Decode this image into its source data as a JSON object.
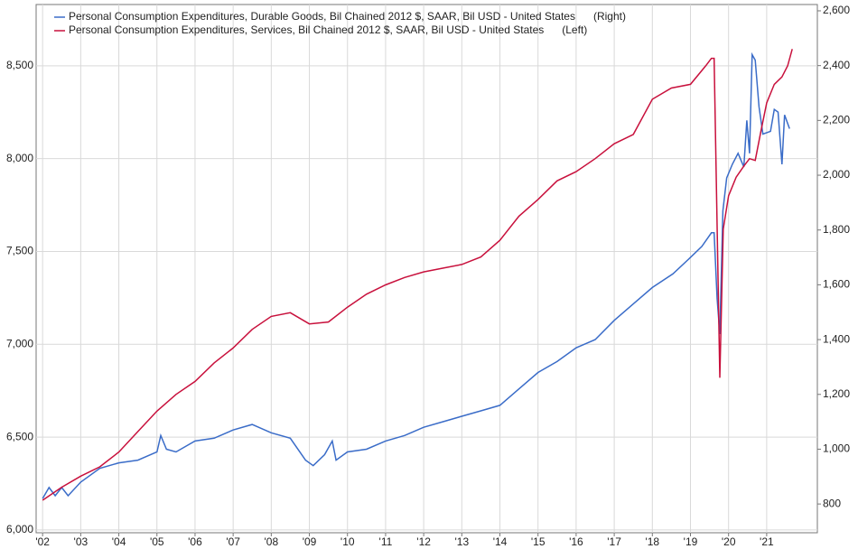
{
  "chart_data": {
    "type": "line",
    "series": [
      {
        "name": "Personal Consumption Expenditures, Durable Goods, Bil Chained 2012 $, SAAR, Bil USD - United States",
        "side": "(Right)",
        "axis": "y2",
        "color": "#3a6cc8",
        "x": [
          2002.0,
          2002.17,
          2002.33,
          2002.5,
          2002.67,
          2003.0,
          2003.5,
          2004.0,
          2004.5,
          2005.0,
          2005.1,
          2005.25,
          2005.5,
          2006.0,
          2006.5,
          2007.0,
          2007.5,
          2008.0,
          2008.5,
          2008.9,
          2009.1,
          2009.4,
          2009.6,
          2009.7,
          2010.0,
          2010.5,
          2011.0,
          2011.5,
          2012.0,
          2012.5,
          2013.0,
          2013.5,
          2014.0,
          2014.5,
          2015.0,
          2015.5,
          2016.0,
          2016.5,
          2017.0,
          2017.5,
          2018.0,
          2018.54,
          2019.0,
          2019.3,
          2019.55,
          2019.62,
          2019.7,
          2019.77,
          2019.85,
          2019.95,
          2020.1,
          2020.25,
          2020.4,
          2020.48,
          2020.55,
          2020.62,
          2020.7,
          2020.8,
          2020.9,
          2021.1,
          2021.2,
          2021.3,
          2021.4,
          2021.47,
          2021.6
        ],
        "values": [
          820,
          860,
          830,
          860,
          830,
          880,
          930,
          950,
          960,
          990,
          1050,
          1000,
          990,
          1030,
          1040,
          1070,
          1090,
          1060,
          1040,
          960,
          940,
          980,
          1030,
          960,
          990,
          1000,
          1030,
          1050,
          1080,
          1100,
          1120,
          1140,
          1160,
          1220,
          1280,
          1320,
          1370,
          1400,
          1470,
          1530,
          1590,
          1640,
          1700,
          1740,
          1790,
          1790,
          1550,
          1420,
          1870,
          1990,
          2040,
          2080,
          2030,
          2200,
          2080,
          2440,
          2420,
          2250,
          2150,
          2160,
          2240,
          2230,
          2040,
          2220,
          2170
        ]
      },
      {
        "name": "Personal Consumption Expenditures, Services, Bil Chained 2012 $, SAAR, Bil USD - United States",
        "side": "(Left)",
        "color": "#c8103c",
        "x": [
          2002.0,
          2002.5,
          2003.0,
          2003.5,
          2004.0,
          2004.5,
          2005.0,
          2005.5,
          2006.0,
          2006.5,
          2007.0,
          2007.5,
          2008.0,
          2008.5,
          2009.0,
          2009.5,
          2010.0,
          2010.5,
          2011.0,
          2011.5,
          2012.0,
          2012.5,
          2013.0,
          2013.5,
          2014.0,
          2014.5,
          2015.0,
          2015.5,
          2016.0,
          2016.5,
          2017.0,
          2017.5,
          2018.0,
          2018.5,
          2019.0,
          2019.4,
          2019.55,
          2019.62,
          2019.77,
          2019.86,
          2020.0,
          2020.2,
          2020.4,
          2020.55,
          2020.7,
          2020.85,
          2021.0,
          2021.2,
          2021.4,
          2021.55,
          2021.67
        ],
        "values": [
          6160,
          6230,
          6290,
          6340,
          6420,
          6530,
          6640,
          6730,
          6800,
          6900,
          6980,
          7080,
          7150,
          7170,
          7110,
          7120,
          7200,
          7270,
          7320,
          7360,
          7390,
          7410,
          7430,
          7470,
          7560,
          7690,
          7780,
          7880,
          7930,
          8000,
          8080,
          8130,
          8320,
          8380,
          8400,
          8500,
          8540,
          8540,
          6820,
          7620,
          7800,
          7900,
          7960,
          8000,
          7990,
          8150,
          8300,
          8400,
          8440,
          8500,
          8590
        ]
      }
    ],
    "xlim": [
      2001.83,
      2022.33
    ],
    "xticks": [
      {
        "value": 2002,
        "label": "'02"
      },
      {
        "value": 2003,
        "label": "'03"
      },
      {
        "value": 2004,
        "label": "'04"
      },
      {
        "value": 2005,
        "label": "'05"
      },
      {
        "value": 2006,
        "label": "'06"
      },
      {
        "value": 2007,
        "label": "'07"
      },
      {
        "value": 2008,
        "label": "'08"
      },
      {
        "value": 2009,
        "label": "'09"
      },
      {
        "value": 2010,
        "label": "'10"
      },
      {
        "value": 2011,
        "label": "'11"
      },
      {
        "value": 2012,
        "label": "'12"
      },
      {
        "value": 2013,
        "label": "'13"
      },
      {
        "value": 2014,
        "label": "'14"
      },
      {
        "value": 2015,
        "label": "'15"
      },
      {
        "value": 2016,
        "label": "'16"
      },
      {
        "value": 2017,
        "label": "'17"
      },
      {
        "value": 2018,
        "label": "'18"
      },
      {
        "value": 2019,
        "label": "'19"
      },
      {
        "value": 2020,
        "label": "'20"
      },
      {
        "value": 2021,
        "label": "'21"
      }
    ],
    "ylim": [
      5985,
      8830
    ],
    "yticks": [
      {
        "value": 6000,
        "label": "6,000"
      },
      {
        "value": 6500,
        "label": "6,500"
      },
      {
        "value": 7000,
        "label": "7,000"
      },
      {
        "value": 7500,
        "label": "7,500"
      },
      {
        "value": 8000,
        "label": "8,000"
      },
      {
        "value": 8500,
        "label": "8,500"
      }
    ],
    "y2lim": [
      695,
      2623
    ],
    "y2ticks": [
      800,
      {
        "value": 1000,
        "label": "1,000"
      },
      {
        "value": 1200,
        "label": "1,200"
      },
      {
        "value": 1400,
        "label": "1,400"
      },
      {
        "value": 1600,
        "label": "1,600"
      },
      {
        "value": 1800,
        "label": "1,800"
      },
      {
        "value": 2000,
        "label": "2,000"
      },
      {
        "value": 2200,
        "label": "2,200"
      },
      {
        "value": 2400,
        "label": "2,400"
      },
      {
        "value": 2600,
        "label": "2,600"
      }
    ],
    "grid": true,
    "legend": "upper left"
  }
}
